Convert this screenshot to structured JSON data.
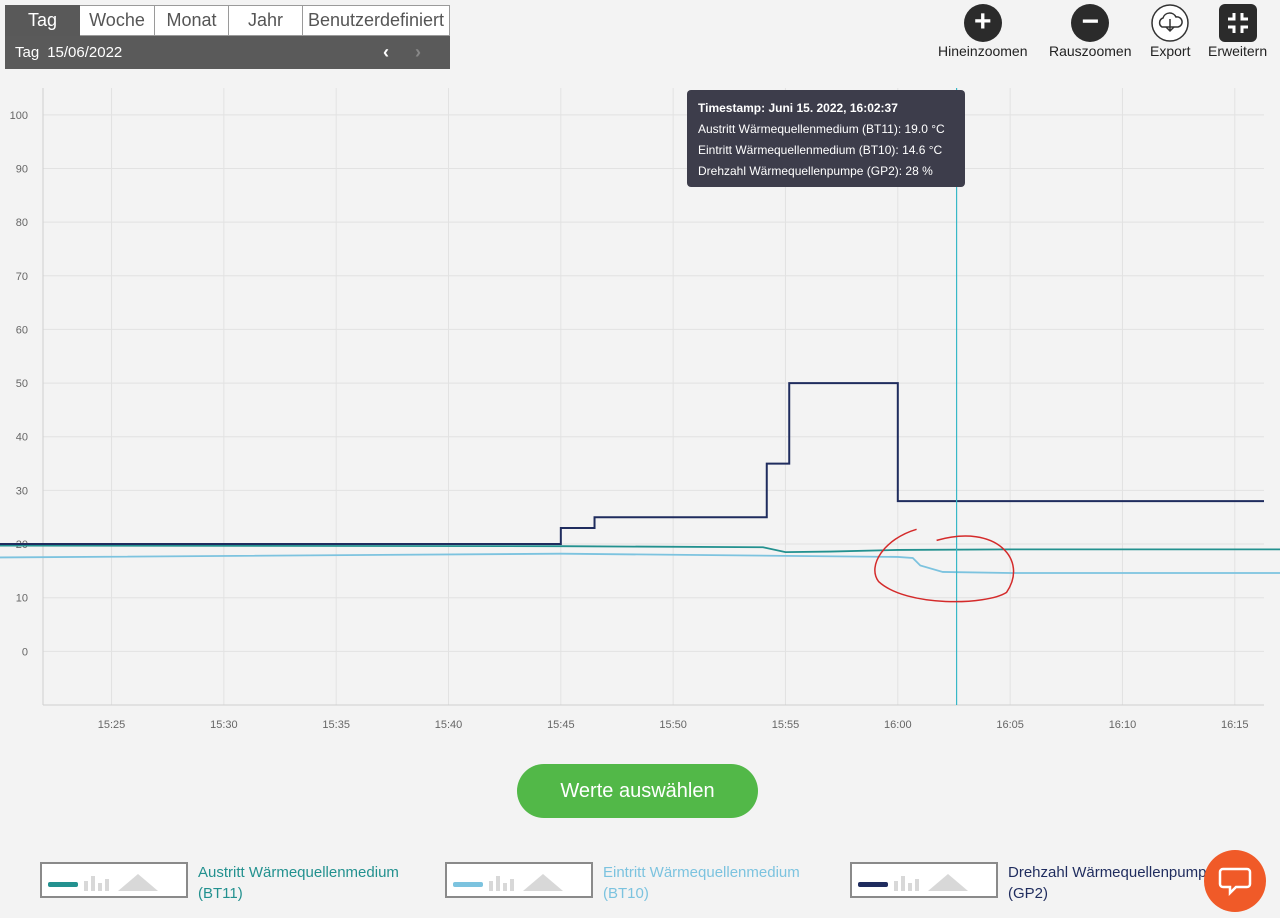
{
  "tabs": [
    "Tag",
    "Woche",
    "Monat",
    "Jahr",
    "Benutzerdefiniert"
  ],
  "active_tab": "Tag",
  "date_bar": {
    "label": "Tag",
    "date": "15/06/2022",
    "prev": "‹",
    "next": "›"
  },
  "toolbar": {
    "zoom_in": "Hineinzoomen",
    "zoom_out": "Rauszoomen",
    "export": "Export",
    "expand": "Erweitern"
  },
  "tooltip": {
    "timestamp": "Timestamp: Juni 15. 2022, 16:02:37",
    "line1": "Austritt Wärmequellenmedium (BT11): 19.0 °C",
    "line2": "Eintritt Wärmequellenmedium (BT10): 14.6 °C",
    "line3": "Drehzahl Wärmequellenpumpe (GP2): 28 %"
  },
  "select_button": "Werte auswählen",
  "legend": {
    "items": [
      {
        "line1": "Austritt Wärmequellenmedium",
        "line2": "(BT11)",
        "color": "#23918f"
      },
      {
        "line1": "Eintritt Wärmequellenmedium",
        "line2": "(BT10)",
        "color": "#7cc3df"
      },
      {
        "line1": "Drehzahl Wärmequellenpumpe",
        "line2": "(GP2)",
        "color": "#1f2c5e"
      }
    ]
  },
  "chart_data": {
    "type": "line",
    "ylim": [
      -10,
      105
    ],
    "yticks": [
      0,
      10,
      20,
      30,
      40,
      50,
      60,
      70,
      80,
      90,
      100
    ],
    "xlim": [
      "15:22",
      "15:16+60"
    ],
    "xticks": [
      "15:25",
      "15:30",
      "15:35",
      "15:40",
      "15:45",
      "15:50",
      "15:55",
      "16:00",
      "16:05",
      "16:10",
      "16:15"
    ],
    "cursor_time": "16:02:37",
    "grid": true,
    "legend_position": "bottom",
    "series": [
      {
        "name": "Austritt Wärmequellenmedium (BT11)",
        "color": "#23918f",
        "points": [
          [
            "15:21",
            19.7
          ],
          [
            "15:45",
            19.6
          ],
          [
            "15:54",
            19.4
          ],
          [
            "15:55",
            18.5
          ],
          [
            "15:57",
            18.6
          ],
          [
            "16:00",
            18.9
          ],
          [
            "16:05",
            19.0
          ],
          [
            "16:16",
            19.0
          ]
        ]
      },
      {
        "name": "Eintritt Wärmequellenmedium (BT10)",
        "color": "#7cc3df",
        "points": [
          [
            "15:21",
            17.5
          ],
          [
            "15:45",
            18.2
          ],
          [
            "15:55",
            17.8
          ],
          [
            "16:00",
            17.6
          ],
          [
            "16:00:40",
            17.4
          ],
          [
            "16:01",
            16.0
          ],
          [
            "16:02",
            14.8
          ],
          [
            "16:05",
            14.6
          ],
          [
            "16:16",
            14.6
          ]
        ]
      },
      {
        "name": "Drehzahl Wärmequellenpumpe (GP2)",
        "color": "#1f2c5e",
        "step": true,
        "points": [
          [
            "15:21",
            20
          ],
          [
            "15:45",
            23
          ],
          [
            "15:46:30",
            25
          ],
          [
            "15:54:10",
            35
          ],
          [
            "15:55:10",
            50
          ],
          [
            "16:00",
            28
          ],
          [
            "16:16",
            28
          ]
        ]
      }
    ]
  }
}
